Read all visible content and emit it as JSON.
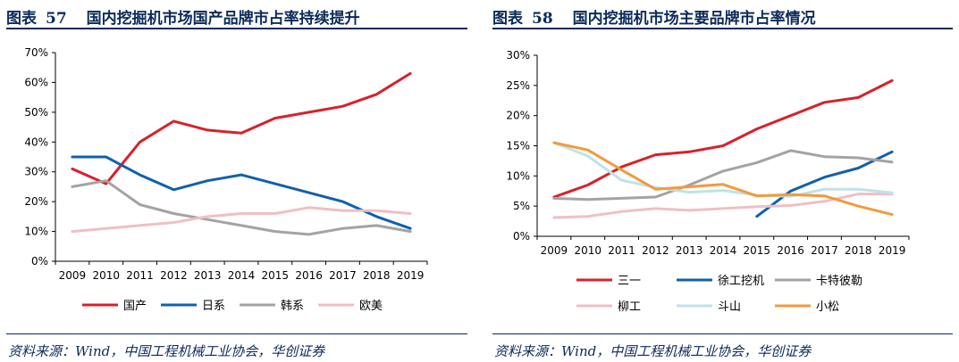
{
  "left": {
    "title_prefix": "图表",
    "title_number": "57",
    "title_text": "国内挖掘机市场国产品牌市占率持续提升",
    "source": "资料来源：Wind，中国工程机械工业协会，华创证券",
    "chart_data": {
      "type": "line",
      "categories": [
        "2009",
        "2010",
        "2011",
        "2012",
        "2013",
        "2014",
        "2015",
        "2016",
        "2017",
        "2018",
        "2019"
      ],
      "ylim": [
        0,
        70
      ],
      "yticks": [
        0,
        10,
        20,
        30,
        40,
        50,
        60,
        70
      ],
      "ytick_labels": [
        "0%",
        "10%",
        "20%",
        "30%",
        "40%",
        "50%",
        "60%",
        "70%"
      ],
      "legend_position": "bottom",
      "series": [
        {
          "name": "国产",
          "color": "#d7212b",
          "values": [
            31,
            26,
            40,
            47,
            44,
            43,
            48,
            50,
            52,
            56,
            63
          ]
        },
        {
          "name": "日系",
          "color": "#1160ab",
          "values": [
            35,
            35,
            29,
            24,
            27,
            29,
            26,
            23,
            20,
            15,
            11
          ]
        },
        {
          "name": "韩系",
          "color": "#a3a3a3",
          "values": [
            25,
            27,
            19,
            16,
            14,
            12,
            10,
            9,
            11,
            12,
            10
          ]
        },
        {
          "name": "欧美",
          "color": "#efbfc4",
          "values": [
            10,
            11,
            12,
            13,
            15,
            16,
            16,
            18,
            17,
            17,
            16
          ]
        }
      ]
    }
  },
  "right": {
    "title_prefix": "图表",
    "title_number": "58",
    "title_text": "国内挖掘机市场主要品牌市占率情况",
    "source": "资料来源：Wind，中国工程机械工业协会，华创证券",
    "chart_data": {
      "type": "line",
      "categories": [
        "2009",
        "2010",
        "2011",
        "2012",
        "2013",
        "2014",
        "2015",
        "2016",
        "2017",
        "2018",
        "2019"
      ],
      "ylim": [
        0,
        30
      ],
      "yticks": [
        0,
        5,
        10,
        15,
        20,
        25,
        30
      ],
      "ytick_labels": [
        "0%",
        "5%",
        "10%",
        "15%",
        "20%",
        "25%",
        "30%"
      ],
      "legend_position": "bottom",
      "series": [
        {
          "name": "三一",
          "color": "#d7212b",
          "values": [
            6.5,
            8.5,
            11.5,
            13.5,
            14.0,
            15.0,
            17.8,
            20.0,
            22.2,
            23.0,
            25.8
          ]
        },
        {
          "name": "徐工挖机",
          "color": "#1160ab",
          "values": [
            null,
            null,
            null,
            null,
            null,
            null,
            3.3,
            7.5,
            9.8,
            11.3,
            14.0
          ]
        },
        {
          "name": "卡特彼勒",
          "color": "#a3a3a3",
          "values": [
            6.3,
            6.1,
            6.3,
            6.5,
            8.5,
            10.8,
            12.2,
            14.2,
            13.2,
            13.0,
            12.3
          ]
        },
        {
          "name": "柳工",
          "color": "#efbfc4",
          "values": [
            3.1,
            3.3,
            4.1,
            4.6,
            4.3,
            4.6,
            4.9,
            5.1,
            5.8,
            7.0,
            7.0
          ]
        },
        {
          "name": "斗山",
          "color": "#bfe2ea",
          "values": [
            15.5,
            13.3,
            9.3,
            8.1,
            7.3,
            7.6,
            6.8,
            6.6,
            7.8,
            7.8,
            7.2
          ]
        },
        {
          "name": "小松",
          "color": "#f39a3c",
          "values": [
            15.5,
            14.3,
            11.0,
            7.8,
            8.2,
            8.6,
            6.7,
            6.9,
            6.7,
            5.0,
            3.6
          ]
        }
      ]
    }
  }
}
